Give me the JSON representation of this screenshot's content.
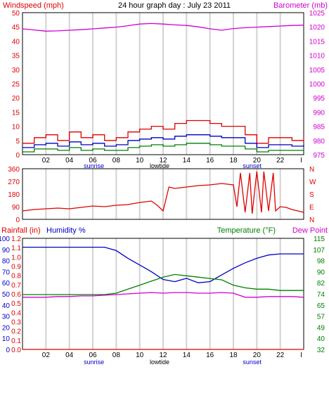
{
  "title": "24 hour graph day : July 23 2011",
  "colors": {
    "red": "#e00000",
    "blue": "#0000c8",
    "green": "#008000",
    "magenta": "#d000d0",
    "grid": "#d2d2d2",
    "frame": "#000000"
  },
  "x_ticks": [
    "02",
    "04",
    "06",
    "08",
    "10",
    "12",
    "14",
    "16",
    "18",
    "20",
    "22",
    "I"
  ],
  "markers": {
    "sunrise": "sunrise",
    "lowtide": "lowtide",
    "sunset": "sunset",
    "sunrise_x": 6.1,
    "lowtide_x": 11.7,
    "sunset_x": 19.6
  },
  "chart_data": [
    {
      "type": "line",
      "name": "wind-barometer",
      "left_label": "Windspeed (mph)",
      "right_label": "Barometer (mb)",
      "xlim": [
        0,
        24
      ],
      "left_ticks": [
        "0",
        "5",
        "10",
        "15",
        "20",
        "25",
        "30",
        "35",
        "40",
        "45",
        "50"
      ],
      "left_range": [
        0,
        50
      ],
      "right_ticks": [
        "975",
        "980",
        "985",
        "990",
        "995",
        "1000",
        "1005",
        "1010",
        "1015",
        "1020",
        "1025"
      ],
      "right_range": [
        975,
        1025
      ],
      "series": [
        {
          "axis": "right",
          "color": "magenta",
          "x": [
            0,
            1,
            2,
            3,
            4,
            5,
            6,
            7,
            8,
            9,
            10,
            11,
            12,
            13,
            14,
            15,
            16,
            17,
            18,
            19,
            20,
            21,
            22,
            23,
            24
          ],
          "values": [
            1019.3,
            1018.9,
            1018.5,
            1018.6,
            1018.8,
            1019.0,
            1019.3,
            1019.6,
            1019.9,
            1020.4,
            1021.0,
            1021.2,
            1021.0,
            1020.7,
            1020.5,
            1020.0,
            1019.3,
            1018.8,
            1019.4,
            1019.7,
            1019.9,
            1020.1,
            1020.3,
            1020.5,
            1020.6
          ]
        },
        {
          "axis": "left",
          "color": "red",
          "x": [
            0,
            1,
            2,
            3,
            4,
            5,
            6,
            7,
            8,
            9,
            10,
            11,
            12,
            13,
            14,
            15,
            16,
            17,
            18,
            19,
            20,
            21,
            22,
            23,
            24
          ],
          "values": [
            4,
            6,
            7,
            5,
            8,
            6,
            7,
            5,
            6,
            8,
            9,
            10,
            9,
            11,
            12,
            12,
            11,
            10,
            10,
            7,
            4,
            6,
            6,
            5,
            6
          ]
        },
        {
          "axis": "left",
          "color": "blue",
          "x": [
            0,
            1,
            2,
            3,
            4,
            5,
            6,
            7,
            8,
            9,
            10,
            11,
            12,
            13,
            14,
            15,
            16,
            17,
            18,
            19,
            20,
            21,
            22,
            23,
            24
          ],
          "values": [
            2.5,
            3.5,
            4,
            3,
            4.5,
            3.5,
            4,
            3,
            3.5,
            5,
            5.5,
            6,
            5.5,
            6.5,
            7,
            7,
            6.5,
            6,
            6,
            4,
            2.5,
            3.5,
            3.5,
            3,
            3.5
          ]
        },
        {
          "axis": "left",
          "color": "green",
          "x": [
            0,
            1,
            2,
            3,
            4,
            5,
            6,
            7,
            8,
            9,
            10,
            11,
            12,
            13,
            14,
            15,
            16,
            17,
            18,
            19,
            20,
            21,
            22,
            23,
            24
          ],
          "values": [
            1,
            2,
            2,
            1.5,
            2.5,
            1.5,
            2,
            1.5,
            1.5,
            2.5,
            3,
            3.5,
            3,
            3.5,
            4,
            4,
            3.5,
            3,
            3,
            2,
            1,
            1.5,
            1.5,
            1.5,
            2
          ]
        }
      ]
    },
    {
      "type": "line",
      "name": "wind-direction",
      "left_ticks": [
        "0",
        "90",
        "180",
        "270",
        "360"
      ],
      "left_range": [
        0,
        360
      ],
      "right_ticks": [
        "N",
        "E",
        "S",
        "W",
        "N"
      ],
      "xlim": [
        0,
        24
      ],
      "series": [
        {
          "axis": "left",
          "color": "red",
          "x": [
            0,
            1,
            2,
            3,
            4,
            5,
            6,
            7,
            8,
            9,
            10,
            11,
            11.5,
            12,
            12.5,
            13,
            14,
            15,
            16,
            17,
            18,
            18.3,
            18.6,
            19,
            19.4,
            19.6,
            20,
            20.4,
            20.6,
            21,
            21.4,
            21.6,
            22,
            22.5,
            23,
            24
          ],
          "values": [
            60,
            70,
            75,
            80,
            75,
            85,
            95,
            90,
            100,
            105,
            120,
            130,
            100,
            60,
            230,
            220,
            230,
            240,
            245,
            255,
            245,
            90,
            330,
            50,
            330,
            40,
            340,
            50,
            340,
            60,
            330,
            60,
            90,
            85,
            70,
            50
          ]
        }
      ]
    },
    {
      "type": "line",
      "name": "rain-humidity-temperature",
      "left_outer_label": "Rainfall (in)",
      "left_label": "Humidity %",
      "right_label": "Temperature (°F)",
      "right_label_2": "Dew Point",
      "xlim": [
        0,
        24
      ],
      "rain_ticks": [
        "0.0",
        "0.1",
        "0.2",
        "0.3",
        "0.4",
        "0.5",
        "0.6",
        "0.7",
        "0.8",
        "0.9",
        "1.0",
        "1.1",
        "1.2"
      ],
      "rain_range": [
        0,
        1.2
      ],
      "humidity_ticks": [
        "0",
        "10",
        "20",
        "30",
        "40",
        "50",
        "60",
        "70",
        "80",
        "90",
        "100"
      ],
      "humidity_range": [
        0,
        100
      ],
      "temp_ticks": [
        "32",
        "40",
        "49",
        "57",
        "65",
        "74",
        "82",
        "90",
        "98",
        "107",
        "115"
      ],
      "temp_range": [
        32,
        115
      ],
      "series": [
        {
          "axis": "humidity",
          "color": "blue",
          "name": "Humidity %",
          "x": [
            0,
            1,
            2,
            3,
            4,
            5,
            6,
            7,
            8,
            9,
            10,
            11,
            12,
            13,
            14,
            15,
            16,
            17,
            18,
            19,
            20,
            21,
            22,
            23,
            24
          ],
          "values": [
            92,
            92,
            92,
            92,
            92,
            92,
            92,
            92,
            89,
            82,
            76,
            70,
            63,
            61,
            64,
            60,
            61,
            67,
            73,
            78,
            82,
            85,
            86,
            86,
            86
          ]
        },
        {
          "axis": "temperature",
          "color": "green",
          "name": "Temperature (°F)",
          "x": [
            0,
            1,
            2,
            3,
            4,
            5,
            6,
            7,
            8,
            9,
            10,
            11,
            12,
            13,
            14,
            15,
            16,
            17,
            18,
            19,
            20,
            21,
            22,
            23,
            24
          ],
          "values": [
            73,
            73,
            73,
            73,
            73,
            73,
            73,
            73,
            74,
            77,
            80,
            83,
            86,
            88,
            87,
            86,
            85,
            84,
            80,
            78,
            77,
            77,
            76,
            76,
            76
          ]
        },
        {
          "axis": "temperature",
          "color": "magenta",
          "name": "Dew Point",
          "x": [
            0,
            1,
            2,
            3,
            4,
            5,
            6,
            7,
            8,
            9,
            10,
            11,
            12,
            13,
            14,
            15,
            16,
            17,
            18,
            19,
            20,
            21,
            22,
            23,
            24
          ],
          "values": [
            71,
            71,
            71,
            71.5,
            71.5,
            72,
            72,
            72.5,
            73,
            73.5,
            74,
            74.5,
            74,
            74.5,
            74.5,
            74,
            74,
            74.5,
            74,
            71,
            71,
            71.5,
            71.5,
            71.5,
            71
          ]
        },
        {
          "axis": "rain",
          "color": "red",
          "name": "Rainfall (in)",
          "x": [
            0,
            24
          ],
          "values": [
            0,
            0
          ]
        }
      ]
    }
  ]
}
